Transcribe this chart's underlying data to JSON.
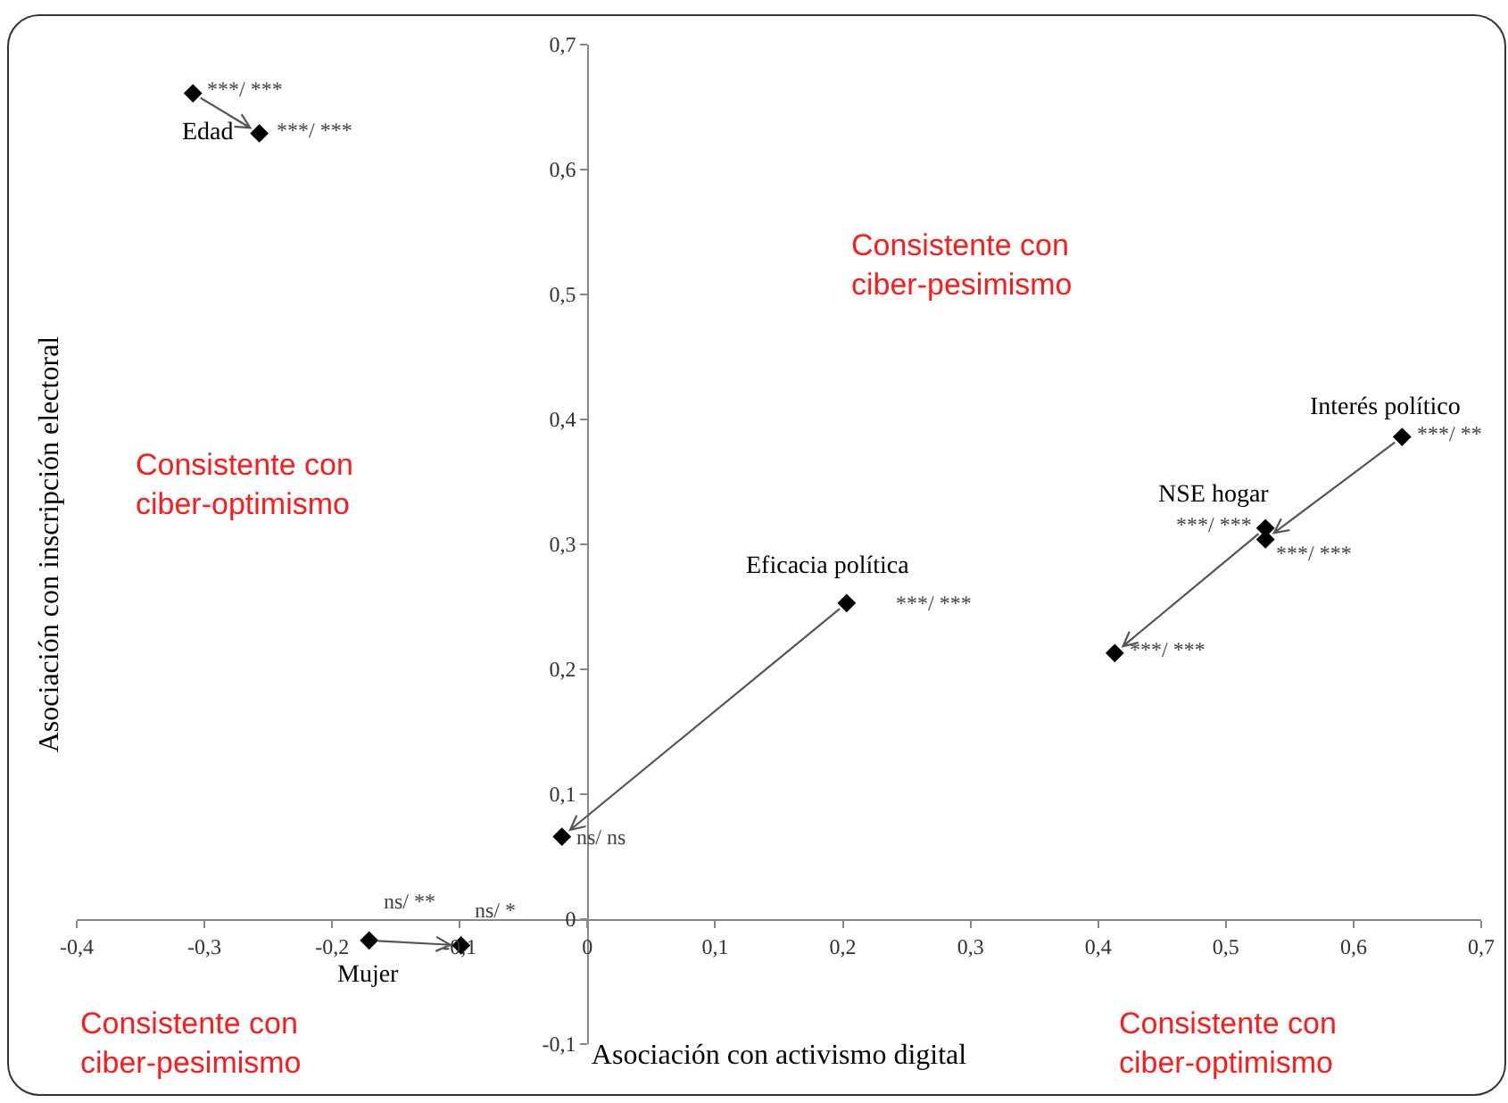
{
  "chart_data": {
    "type": "scatter",
    "xlabel": "Asociación con activismo digital",
    "ylabel": "Asociación con inscripción electoral",
    "xlim": [
      -0.4,
      0.7
    ],
    "xticks": [
      {
        "value": -0.4,
        "label": "-0,4"
      },
      {
        "value": -0.3,
        "label": "-0,3"
      },
      {
        "value": -0.2,
        "label": "-0,2"
      },
      {
        "value": -0.1,
        "label": "-0,1"
      },
      0,
      {
        "value": 0.1,
        "label": "0,1"
      },
      {
        "value": 0.2,
        "label": "0,2"
      },
      {
        "value": 0.3,
        "label": "0,3"
      },
      {
        "value": 0.4,
        "label": "0,4"
      },
      {
        "value": 0.5,
        "label": "0,5"
      },
      {
        "value": 0.6,
        "label": "0,6"
      },
      {
        "value": 0.7,
        "label": "0,7"
      }
    ],
    "ylim": [
      -0.1,
      0.7
    ],
    "yticks": [
      {
        "value": -0.1,
        "label": "-0,1"
      },
      0,
      {
        "value": 0.1,
        "label": "0,1"
      },
      {
        "value": 0.2,
        "label": "0,2"
      },
      {
        "value": 0.3,
        "label": "0,3"
      },
      {
        "value": 0.4,
        "label": "0,4"
      },
      {
        "value": 0.5,
        "label": "0,5"
      },
      {
        "value": 0.6,
        "label": "0,6"
      },
      {
        "value": 0.7,
        "label": "0,7"
      }
    ],
    "grid": false,
    "legend": false,
    "marker": "diamond",
    "series": [
      {
        "name": "Edad",
        "color": "#000000",
        "x": [
          -0.309,
          -0.257
        ],
        "values": [
          0.661,
          0.629
        ],
        "value_labels": [
          "***/ ***",
          "***/ ***"
        ]
      },
      {
        "name": "Interés político",
        "color": "#000000",
        "x": [
          0.638,
          0.531
        ],
        "values": [
          0.386,
          0.304
        ],
        "value_labels": [
          "***/ **",
          "***/ ***"
        ]
      },
      {
        "name": "NSE hogar",
        "color": "#000000",
        "x": [
          0.531,
          0.413
        ],
        "values": [
          0.313,
          0.213
        ],
        "value_labels": [
          "***/ ***",
          "***/ ***"
        ]
      },
      {
        "name": "Eficacia política",
        "color": "#000000",
        "x": [
          0.203,
          -0.02
        ],
        "values": [
          0.253,
          0.066
        ],
        "value_labels": [
          "***/ ***",
          "ns/ ns"
        ]
      },
      {
        "name": "Mujer",
        "color": "#000000",
        "x": [
          -0.171,
          -0.099
        ],
        "values": [
          -0.017,
          -0.021
        ],
        "value_labels": [
          "ns/ **",
          "ns/ *"
        ]
      }
    ],
    "annotations": [
      "Consistente con\nciber-optimismo",
      "Consistente con\nciber-pesimismo",
      "Consistente con\nciber-pesimismo",
      "Consistente con\nciber-optimismo"
    ]
  }
}
